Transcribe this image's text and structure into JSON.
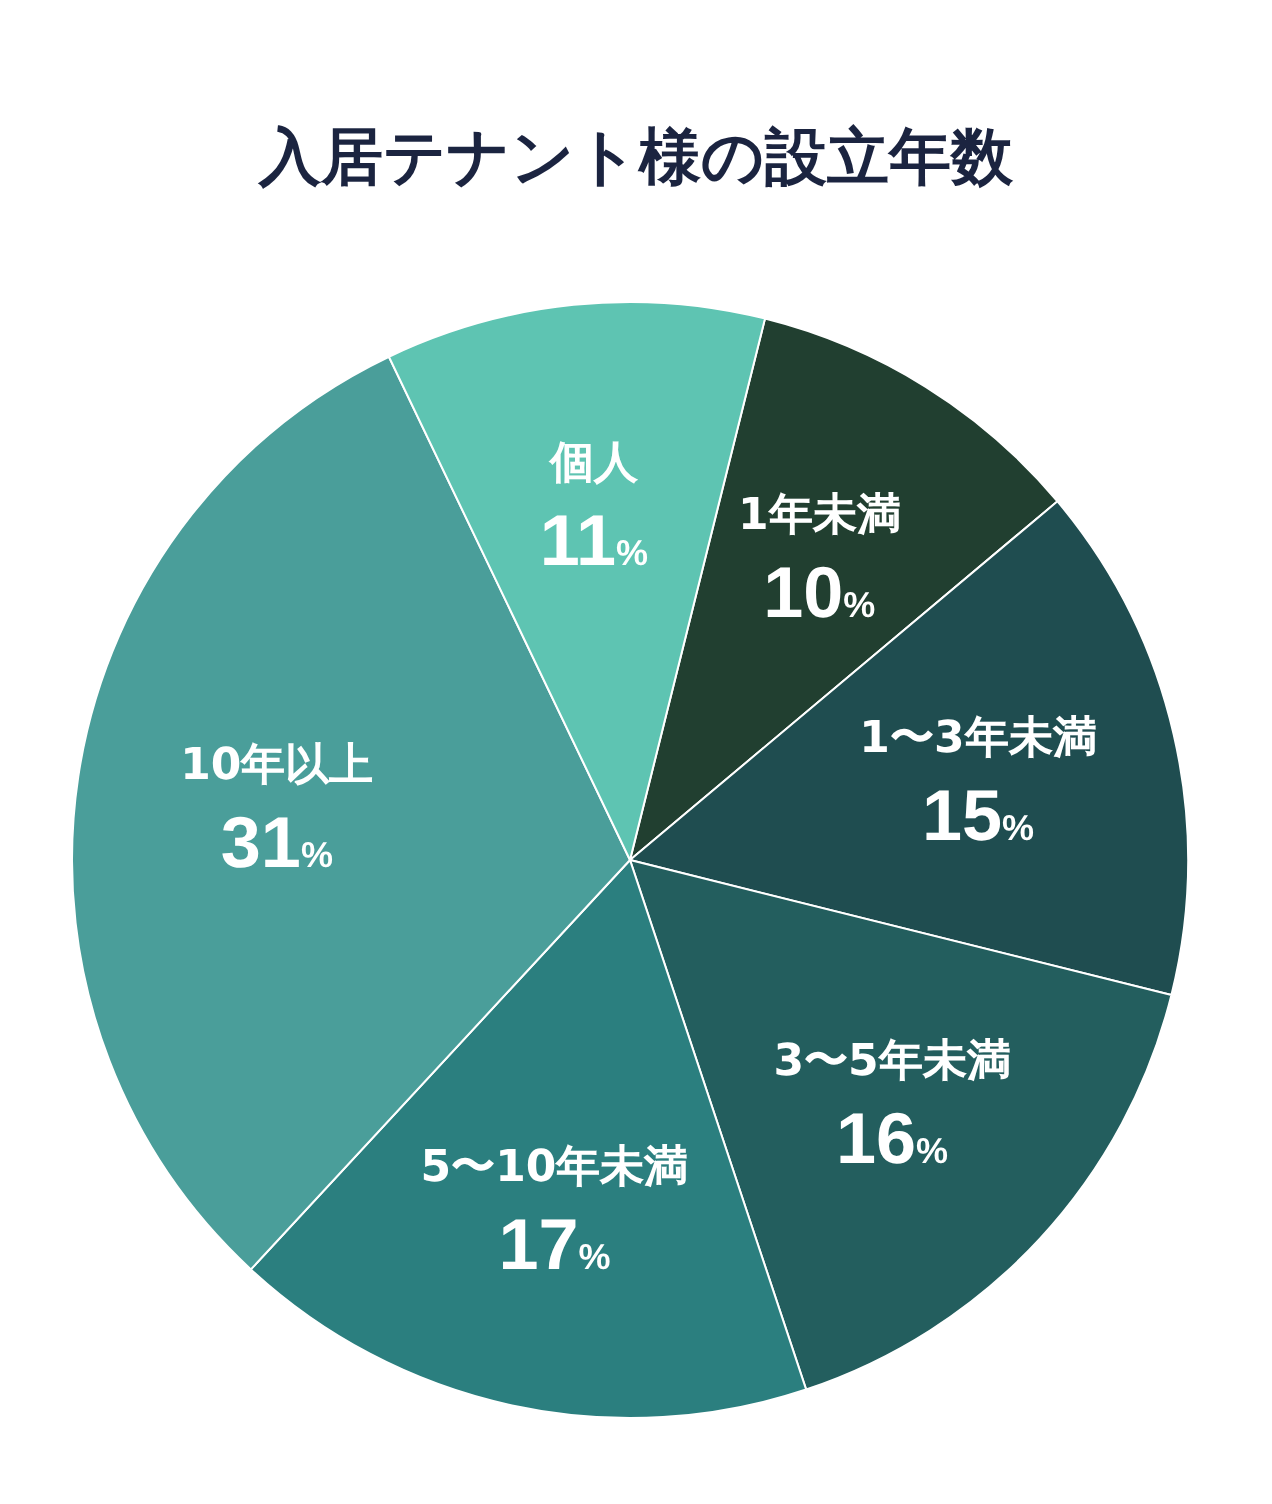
{
  "chart_data": {
    "type": "pie",
    "title": "入居テナント様の設立年数",
    "categories": [
      "1年未満",
      "1〜3年未満",
      "3〜5年未満",
      "5〜10年未満",
      "10年以上",
      "個人"
    ],
    "values": [
      10,
      15,
      16,
      17,
      31,
      11
    ],
    "value_labels": [
      "10%",
      "15%",
      "16%",
      "17%",
      "31%",
      "11%"
    ],
    "colors": [
      "#213f30",
      "#1f4d50",
      "#235e5e",
      "#2b7f7f",
      "#4a9e9a",
      "#5ec4b2"
    ],
    "legend": false
  }
}
